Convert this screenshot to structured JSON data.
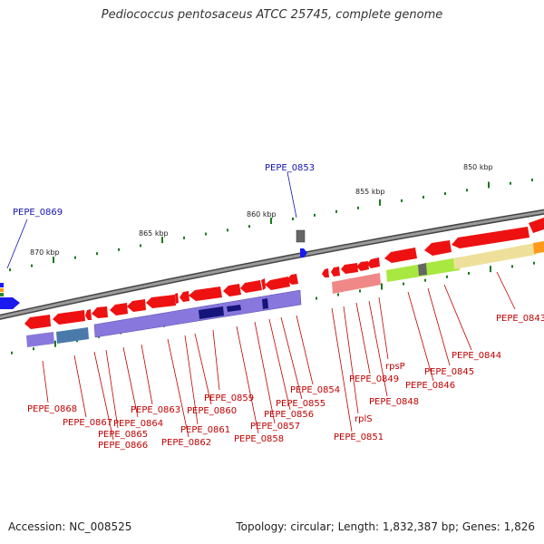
{
  "title": "Pediococcus pentosaceus ATCC 25745, complete genome",
  "footer": {
    "accession": "Accession: NC_008525",
    "summary": "Topology: circular; Length: 1,832,387 bp; Genes: 1,826"
  },
  "colors": {
    "backbone": "#777777",
    "red_gene": "#ee1111",
    "blue_gene": "#1a1aee",
    "grey_gene": "#666666",
    "tick": "#1a7a1a",
    "label_blue": "#1414b4",
    "label_red": "#c00000",
    "cog_purple": "#8877dd",
    "cog_navy": "#14147a",
    "cog_steel": "#4a7aaa",
    "cog_pink": "#f08888",
    "cog_lime": "#a8e840",
    "cog_khaki": "#eee09a",
    "cog_orange": "#ff9a1a"
  },
  "scale_labels": [
    "850 kbp",
    "855 kbp",
    "860 kbp",
    "865 kbp",
    "870 kbp"
  ],
  "gene_labels": {
    "forward": [
      "PEPE_0853",
      "PEPE_0869"
    ],
    "reverse": [
      "PEPE_0843",
      "PEPE_0844",
      "PEPE_0845",
      "PEPE_0846",
      "rpsP",
      "PEPE_0848",
      "PEPE_0849",
      "rplS",
      "PEPE_0851",
      "PEPE_0854",
      "PEPE_0855",
      "PEPE_0856",
      "PEPE_0857",
      "PEPE_0858",
      "PEPE_0859",
      "PEPE_0860",
      "PEPE_0861",
      "PEPE_0862",
      "PEPE_0863",
      "PEPE_0864",
      "PEPE_0865",
      "PEPE_0866",
      "PEPE_0867",
      "PEPE_0868"
    ]
  }
}
